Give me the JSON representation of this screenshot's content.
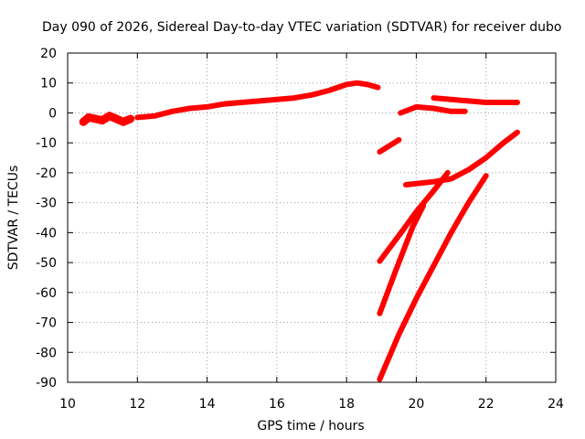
{
  "chart_data": {
    "type": "line",
    "title": "Day 090 of 2026, Sidereal Day-to-day VTEC variation (SDTVAR) for receiver dubo",
    "xlabel": "GPS time / hours",
    "ylabel": "SDTVAR / TECUs",
    "xlim": [
      10,
      24
    ],
    "ylim": [
      -90,
      20
    ],
    "xticks": [
      10,
      12,
      14,
      16,
      18,
      20,
      22,
      24
    ],
    "yticks": [
      20,
      10,
      0,
      -10,
      -20,
      -30,
      -40,
      -50,
      -60,
      -70,
      -80,
      -90
    ],
    "grid": true,
    "color": "#ff0000",
    "series": [
      {
        "x": [
          10.45,
          10.6,
          10.8,
          11.0,
          11.2,
          11.4,
          11.6,
          11.8
        ],
        "y": [
          -3,
          -1.5,
          -2,
          -2.5,
          -1,
          -2,
          -3,
          -2
        ]
      },
      {
        "x": [
          12.0,
          12.5,
          13.0,
          13.5,
          14.0,
          14.5,
          15.0,
          15.5,
          16.0,
          16.5,
          17.0,
          17.5,
          18.0,
          18.3,
          18.6,
          18.9
        ],
        "y": [
          -1.5,
          -1,
          0.5,
          1.5,
          2,
          3,
          3.5,
          4,
          4.5,
          5,
          6,
          7.5,
          9.5,
          10,
          9.5,
          8.5
        ]
      },
      {
        "x": [
          18.95,
          19.5
        ],
        "y": [
          -13,
          -9
        ]
      },
      {
        "x": [
          19.55,
          20.0,
          20.5,
          21.0,
          21.4
        ],
        "y": [
          0,
          2,
          1.5,
          0.5,
          0.5
        ]
      },
      {
        "x": [
          20.5,
          21.0,
          21.5,
          22.0,
          22.5,
          22.9
        ],
        "y": [
          5,
          4.5,
          4,
          3.5,
          3.5,
          3.5
        ]
      },
      {
        "x": [
          19.7,
          20.5,
          21.0,
          21.5,
          22.0,
          22.5,
          22.9
        ],
        "y": [
          -24,
          -23,
          -22,
          -19,
          -15,
          -10,
          -6.5
        ]
      },
      {
        "x": [
          18.95,
          19.5,
          20.0,
          20.5,
          20.9
        ],
        "y": [
          -49.5,
          -41,
          -33,
          -26,
          -20
        ]
      },
      {
        "x": [
          18.95,
          19.4,
          19.9,
          20.2
        ],
        "y": [
          -67,
          -53,
          -38,
          -31
        ]
      },
      {
        "x": [
          18.95,
          19.5,
          20.0,
          20.5,
          21.0,
          21.5,
          22.0
        ],
        "y": [
          -89,
          -74,
          -62,
          -51,
          -40,
          -30,
          -21
        ]
      }
    ]
  }
}
